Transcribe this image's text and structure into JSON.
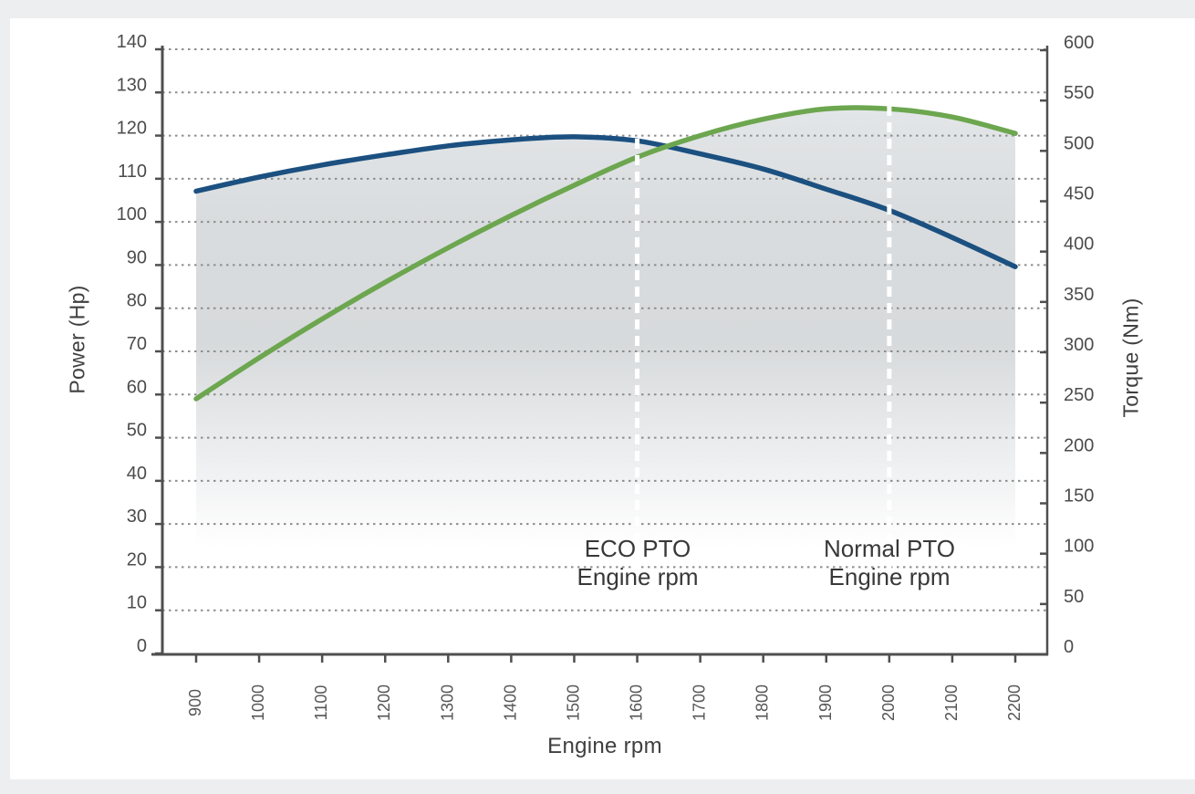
{
  "page": {
    "background_color": "#eceef0",
    "panel_color": "#ffffff"
  },
  "chart_data": {
    "type": "line",
    "x_axis": {
      "label": "Engine rpm",
      "min": 900,
      "max": 2200,
      "tick_step": 100
    },
    "left_axis": {
      "label": "Power (Hp)",
      "min": 0,
      "max": 140,
      "tick_step": 10
    },
    "right_axis": {
      "label": "Torque (Nm)",
      "min": 0,
      "max": 600,
      "tick_step": 50
    },
    "x": [
      900,
      1000,
      1100,
      1200,
      1300,
      1400,
      1500,
      1600,
      1700,
      1800,
      1900,
      2000,
      2100,
      2200
    ],
    "series": [
      {
        "name": "Torque",
        "axis": "right",
        "unit": "Nm",
        "color": "#1b5080",
        "values": [
          460,
          474,
          486,
          496,
          505,
          511,
          514,
          510,
          497,
          482,
          462,
          441,
          414,
          385
        ]
      },
      {
        "name": "Power",
        "axis": "left",
        "unit": "Hp",
        "color": "#6ca64f",
        "values": [
          59,
          68.5,
          77.5,
          86,
          94,
          101.5,
          108.5,
          115,
          120,
          123.8,
          126.2,
          126.2,
          124.3,
          120.5
        ]
      }
    ],
    "annotations": [
      {
        "title": "ECO PTO",
        "subtitle": "Engine rpm",
        "rpm": 1600
      },
      {
        "title": "Normal PTO",
        "subtitle": "Engine rpm",
        "rpm": 2000
      }
    ],
    "grid": {
      "horizontal": "dotted",
      "color": "#8d8d8d"
    },
    "marker_line_color": "#ffffff",
    "fill_gradient": [
      "#e4e7e9",
      "#d9dcde",
      "#d7dadc",
      "#f0f1f2",
      "#ffffff"
    ],
    "axis_line_color": "#4f4f4f",
    "tick_label_color": "#4c4c4c"
  }
}
